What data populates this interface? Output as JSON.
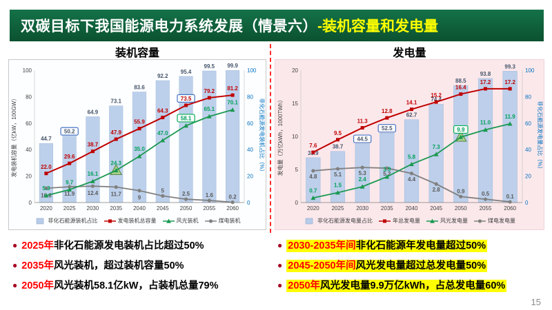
{
  "header": {
    "title": "双碳目标下我国能源电力系统发展（情景六）",
    "subtitle": "-装机容量和发电量"
  },
  "page_number": "15",
  "colors": {
    "header_green": "#147248",
    "highlight_yellow": "#FFFF00",
    "accent_red_bright": "#FF0000",
    "bullet_dot": "#A50021",
    "panel_pink": "#FBE8EB",
    "bar_blue": "#B7CCE9",
    "line_red": "#C00000",
    "line_green": "#1A9850",
    "line_gray": "#808080",
    "axis_blue": "#0070C0"
  },
  "chart_data": [
    {
      "type": "combo",
      "title": "装机容量",
      "categories": [
        "2020",
        "2025",
        "2030",
        "2035",
        "2040",
        "2045",
        "2050",
        "2055",
        "2060"
      ],
      "left_axis": {
        "label": "发电装机容量（亿kW，100GW）",
        "min": 0,
        "max": 100,
        "ticks": [
          0,
          20,
          40,
          60,
          80,
          100
        ],
        "color": "#404040"
      },
      "right_axis": {
        "label": "非化石能源发电装机占比（%）",
        "min": 0,
        "max": 100,
        "ticks": [
          0,
          20,
          40,
          60,
          80,
          100
        ],
        "color": "#0070C0"
      },
      "bars": {
        "name": "非化石能源装机占比",
        "axis": "right",
        "color": "#B7CCE9",
        "values": [
          44.7,
          50.2,
          64.9,
          73.1,
          83.6,
          92.2,
          95.4,
          99.5,
          99.9
        ],
        "labels": [
          "44.7",
          "50.2",
          "64.9",
          "73.1",
          "83.6",
          "92.2",
          "95.4",
          "99.5",
          "99.9"
        ],
        "boxed": [
          {
            "index": 1,
            "color": "#4472C4"
          }
        ]
      },
      "lines": [
        {
          "name": "发电装机总容量",
          "color": "#C00000",
          "label_color": "#C00000",
          "marker": "square",
          "width": 2,
          "values": [
            22.0,
            29.6,
            38.7,
            47.9,
            55.9,
            64.3,
            73.5,
            79.2,
            81.2
          ],
          "labels": [
            "22.0",
            "29.6",
            "38.7",
            "47.9",
            "55.9",
            "64.3",
            "73.5",
            "79.2",
            "81.2"
          ],
          "label_offset": -7,
          "boxed": [
            {
              "index": 6,
              "color": "#4472C4"
            }
          ]
        },
        {
          "name": "风光装机",
          "color": "#1A9850",
          "label_color": "#00A05A",
          "marker": "triangle",
          "width": 1.8,
          "values": [
            5.3,
            9.7,
            16.1,
            24.3,
            35.0,
            47.0,
            58.1,
            65.1,
            70.1
          ],
          "labels": [
            "5.3",
            "9.7",
            "16.1",
            "24.3",
            "35.0",
            "47.0",
            "58.1",
            "65.1",
            "70.1"
          ],
          "label_offset": -8,
          "boxed": [
            {
              "index": 6,
              "color": "#00B050"
            }
          ],
          "highlight_triangle": [
            3
          ]
        },
        {
          "name": "煤电装机",
          "color": "#808080",
          "label_color": "#595959",
          "marker": "circle",
          "width": 1.8,
          "values": [
            10.8,
            11.9,
            12.4,
            11.7,
            9.0,
            5.0,
            2.5,
            1.6,
            0.2
          ],
          "labels": [
            "10.8",
            "11.9",
            "12.4",
            "11.7",
            "9",
            "5",
            "2.5",
            "1.6",
            "0.2"
          ],
          "label_offset": 13
        }
      ]
    },
    {
      "type": "combo",
      "title": "发电量",
      "categories": [
        "2020",
        "2025",
        "2030",
        "2035",
        "2040",
        "2045",
        "2050",
        "2055",
        "2060"
      ],
      "left_axis": {
        "label": "发电量（万亿kWh，1000TWh）",
        "min": 0,
        "max": 20,
        "ticks": [
          0,
          5,
          10,
          15,
          20
        ],
        "color": "#404040"
      },
      "right_axis": {
        "label": "非化石能源发电量占比（%）",
        "min": 0,
        "max": 100,
        "ticks": [
          0,
          20,
          40,
          60,
          80,
          100
        ],
        "color": "#0070C0"
      },
      "bars": {
        "name": "非化石能源发电量占比",
        "axis": "right",
        "color": "#B7CCE9",
        "values": [
          33.9,
          38.7,
          44.5,
          52.5,
          62.7,
          74.4,
          88.5,
          93.8,
          99.3
        ],
        "labels": [
          "33.9",
          "38.7",
          "44.5",
          "52.5",
          "62.7",
          "74.4",
          "88.5",
          "93.8",
          "99.3"
        ],
        "boxed": [
          {
            "index": 2,
            "color": "#4472C4"
          },
          {
            "index": 3,
            "color": "#4472C4"
          }
        ]
      },
      "lines": [
        {
          "name": "年总发电量",
          "color": "#C00000",
          "label_color": "#C00000",
          "marker": "square",
          "width": 2,
          "values": [
            7.6,
            9.5,
            11.3,
            12.8,
            14.1,
            15.2,
            16.4,
            17.2,
            17.2
          ],
          "labels": [
            "7.6",
            "9.5",
            "11.3",
            "12.8",
            "14.1",
            "15.2",
            "16.4",
            "17.2",
            "17.2"
          ],
          "label_offset": -7
        },
        {
          "name": "风光发电量",
          "color": "#1A9850",
          "label_color": "#00A05A",
          "marker": "triangle",
          "width": 1.8,
          "values": [
            0.7,
            1.5,
            2.4,
            3.9,
            5.8,
            7.3,
            9.9,
            11.0,
            11.9
          ],
          "labels": [
            "0.7",
            "1.5",
            "2.4",
            "3.9",
            "5.8",
            "7.3",
            "9.9",
            "11.0",
            "11.9"
          ],
          "label_offset": -8,
          "boxed": [
            {
              "index": 6,
              "color": "#00B050"
            }
          ],
          "highlight_triangle": [
            6
          ]
        },
        {
          "name": "煤电发电量",
          "color": "#808080",
          "label_color": "#595959",
          "marker": "circle",
          "width": 1.8,
          "values": [
            4.8,
            5.1,
            5.3,
            5.2,
            4.4,
            2.8,
            0.9,
            0.5,
            0.1
          ],
          "labels": [
            "4.8",
            "5.1",
            "5.3",
            "5.2",
            "4.4",
            "2.8",
            "0.9",
            "0.5",
            "0.1"
          ],
          "label_offset": 11
        }
      ]
    }
  ],
  "bullets": {
    "left": [
      {
        "prefix": "2025年",
        "text": "非化石能源发电装机占比超过50%"
      },
      {
        "prefix": "2035年",
        "text": "风光装机，超过装机容量50%"
      },
      {
        "prefix": "2050年",
        "text": "风光装机58.1亿kW，占装机总量79%"
      }
    ],
    "right": [
      {
        "prefix": "2030-2035年间",
        "text": "非化石能源年发电量超过50%"
      },
      {
        "prefix": "2045-2050年间",
        "text": "风光发电量超过总发电量50%"
      },
      {
        "prefix": "2050年",
        "text": "风光发电量9.9万亿kWh，占总发电量60%"
      }
    ]
  }
}
